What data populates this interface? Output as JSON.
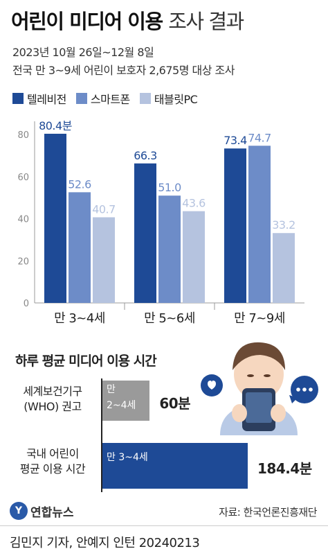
{
  "title_main": "어린이 미디어 이용",
  "title_rest": "조사 결과",
  "subtitle1": "2023년 10월 26일~12월 8일",
  "subtitle2": "전국 만 3~9세 어린이 보호자 2,675명 대상 조사",
  "colors": {
    "tv": "#1e4a96",
    "smartphone": "#6d8cc8",
    "tablet": "#b5c3df",
    "gray": "#9a9a9a"
  },
  "chart_data": {
    "type": "bar",
    "categories": [
      "만 3~4세",
      "만 5~6세",
      "만 7~9세"
    ],
    "series": [
      {
        "name": "텔레비전",
        "values": [
          80.4,
          66.3,
          73.4
        ]
      },
      {
        "name": "스마트폰",
        "values": [
          52.6,
          51.0,
          74.7
        ]
      },
      {
        "name": "태블릿PC",
        "values": [
          40.7,
          43.6,
          33.2
        ]
      }
    ],
    "value_labels": [
      [
        "80.4분",
        "52.6",
        "40.7"
      ],
      [
        "66.3",
        "51.0",
        "43.6"
      ],
      [
        "73.4",
        "74.7",
        "33.2"
      ]
    ],
    "yticks": [
      0,
      20,
      40,
      60,
      80
    ],
    "ylim": [
      0,
      85
    ],
    "grid": false
  },
  "section2": {
    "title": "하루 평균 미디어 이용 시간",
    "rows": [
      {
        "label_line1": "세계보건기구",
        "label_line2": "(WHO) 권고",
        "bar_line1": "만",
        "bar_line2": "2~4세",
        "value": 60,
        "value_label": "60분"
      },
      {
        "label_line1": "국내 어린이",
        "label_line2": "평균 이용 시간",
        "bar_line1": "만 3~4세",
        "bar_line2": "",
        "value": 184.4,
        "value_label": "184.4분"
      }
    ]
  },
  "logo_text": "연합뉴스",
  "source": "자료: 한국언론진흥재단",
  "credit": "김민지 기자, 안예지 인턴  20240213"
}
